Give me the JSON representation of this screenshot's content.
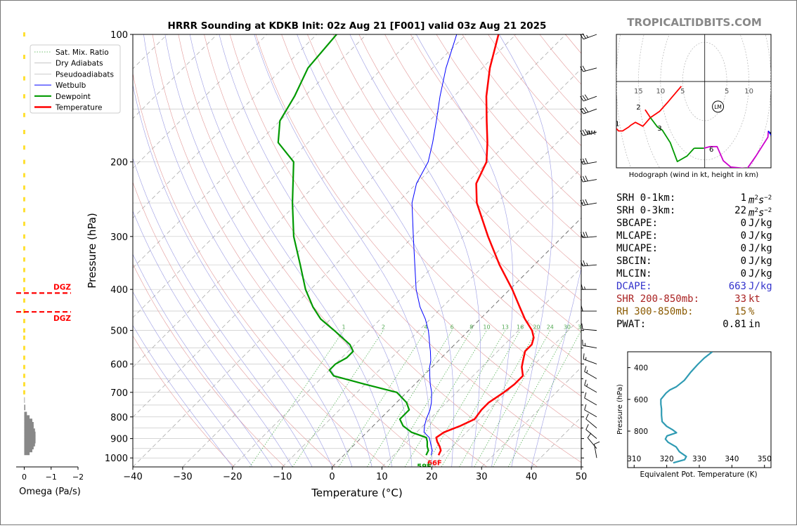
{
  "title": "HRRR Sounding at KDKB Init: 02z Aug 21 [F001] valid 03z Aug 21 2025",
  "brand": "TROPICALTIDBITS.COM",
  "colors": {
    "temperature": "#ff0000",
    "dewpoint": "#009900",
    "wetbulb": "#0000ff",
    "dry_adiabat": "#e39a9a",
    "pseudoadiabat": "#9a9ae3",
    "mixing_ratio": "#44aa44",
    "isotherm": "#aaaaaa",
    "hodo_line": "#2f9bb3",
    "dgz": "#ff0000",
    "omega_pos": "#ffe033",
    "omega_neg": "#888888"
  },
  "legend": {
    "items": [
      {
        "label": "Sat. Mix. Ratio",
        "kind": "mix"
      },
      {
        "label": "Dry Adiabats",
        "kind": "dry"
      },
      {
        "label": "Pseudoadiabats",
        "kind": "pseudo"
      },
      {
        "label": "Wetbulb",
        "kind": "wetbulb"
      },
      {
        "label": "Dewpoint",
        "kind": "dewpoint"
      },
      {
        "label": "Temperature",
        "kind": "temperature"
      }
    ]
  },
  "chart_data": [
    {
      "type": "line",
      "name": "skewt",
      "xlabel": "Temperature (°C)",
      "ylabel": "Pressure (hPa)",
      "xlim": [
        -40,
        50
      ],
      "ylim": [
        1050,
        100
      ],
      "log_y": true,
      "skew": true,
      "x_ticks": [
        -40,
        -30,
        -20,
        -10,
        0,
        10,
        20,
        30,
        40,
        50
      ],
      "x_tick_labels": [
        "−40",
        "−30",
        "−20",
        "−10",
        "0",
        "10",
        "20",
        "30",
        "40",
        "50"
      ],
      "y_ticks": [
        100,
        200,
        300,
        400,
        500,
        600,
        700,
        800,
        900,
        1000
      ],
      "y_tick_labels": [
        "100",
        "200",
        "300",
        "400",
        "500",
        "600",
        "700",
        "800",
        "900",
        "1000"
      ],
      "mixing_ratio_labels": [
        "1",
        "2",
        "4",
        "6",
        "8",
        "10",
        "13",
        "16",
        "20",
        "24",
        "30",
        "36"
      ],
      "mixing_ratio_values": [
        1,
        2,
        4,
        6,
        8,
        10,
        13,
        16,
        20,
        24,
        30,
        36
      ],
      "surface_temp_label": "66F",
      "surface_dew_label": "59F",
      "series": [
        {
          "name": "Temperature",
          "p": [
            985,
            960,
            940,
            915,
            895,
            870,
            840,
            810,
            770,
            740,
            700,
            670,
            640,
            610,
            590,
            560,
            540,
            520,
            500,
            470,
            440,
            400,
            350,
            300,
            250,
            225,
            200,
            180,
            160,
            140,
            120,
            100
          ],
          "t": [
            19,
            18.5,
            17.5,
            16,
            15,
            15.5,
            17.5,
            19,
            18.5,
            18.5,
            19.5,
            20,
            20,
            18,
            17,
            15.5,
            15.5,
            14.5,
            12.7,
            9,
            5.5,
            0.5,
            -7,
            -15,
            -24,
            -28,
            -30.3,
            -34,
            -38.5,
            -43.5,
            -48.5,
            -53.5
          ]
        },
        {
          "name": "Dewpoint",
          "p": [
            985,
            960,
            940,
            915,
            895,
            870,
            840,
            810,
            790,
            770,
            740,
            700,
            670,
            640,
            620,
            600,
            580,
            560,
            540,
            500,
            470,
            440,
            400,
            350,
            300,
            250,
            200,
            180,
            160,
            140,
            120,
            100
          ],
          "t": [
            16.5,
            16,
            15,
            14,
            13,
            9,
            6,
            4,
            4,
            4,
            2,
            -2,
            -10,
            -18,
            -20,
            -20,
            -19,
            -19,
            -21,
            -27,
            -32,
            -36,
            -41,
            -47,
            -54,
            -61,
            -69,
            -76,
            -80,
            -82,
            -85,
            -86
          ]
        },
        {
          "name": "Wetbulb",
          "p": [
            985,
            960,
            940,
            915,
            895,
            870,
            840,
            810,
            770,
            740,
            700,
            670,
            640,
            610,
            590,
            560,
            540,
            520,
            500,
            470,
            440,
            400,
            350,
            300,
            250,
            225,
            200,
            180,
            160,
            140,
            120,
            100
          ],
          "t": [
            17.5,
            16.8,
            15.8,
            14.6,
            13.6,
            11.5,
            10.3,
            9.3,
            8.2,
            7,
            5,
            3.1,
            1.3,
            -0.5,
            -1.5,
            -3.5,
            -5,
            -6.5,
            -8.1,
            -11,
            -14.5,
            -18.8,
            -24,
            -30,
            -37,
            -40,
            -42,
            -45,
            -48.6,
            -52.8,
            -57.3,
            -61.9
          ]
        }
      ]
    },
    {
      "type": "bar",
      "name": "omega",
      "xlabel": "Omega (Pa/s)",
      "x_ticks": [
        0,
        -1,
        -2
      ],
      "x_tick_labels": [
        "0",
        "−1",
        "−2"
      ],
      "xlim": [
        0.3,
        -2.0
      ],
      "dgz_label": "DGZ",
      "dgz_top_p": 408,
      "dgz_bottom_p": 452,
      "levels_p": [
        100,
        113,
        127,
        140,
        155,
        170,
        185,
        200,
        215,
        230,
        245,
        260,
        280,
        300,
        320,
        340,
        360,
        380,
        400,
        425,
        450,
        475,
        500,
        520,
        550,
        580,
        610,
        640,
        670,
        700,
        730,
        760,
        790,
        805,
        820,
        835,
        850,
        865,
        880,
        895,
        910,
        925,
        940,
        955,
        970
      ],
      "values": [
        0.03,
        0.03,
        0.03,
        0.03,
        0.03,
        0.03,
        0.03,
        0.02,
        0.02,
        0.02,
        0.02,
        0.02,
        0.03,
        0.03,
        0.03,
        0.03,
        0.03,
        0.03,
        0.03,
        0.03,
        0.02,
        0.02,
        0.02,
        0.01,
        0.01,
        0.01,
        0.01,
        0.01,
        0.01,
        0.01,
        -0.02,
        -0.04,
        -0.1,
        -0.2,
        -0.3,
        -0.35,
        -0.35,
        -0.4,
        -0.42,
        -0.42,
        -0.42,
        -0.4,
        -0.35,
        -0.3,
        -0.2
      ]
    },
    {
      "type": "line",
      "name": "hodograph",
      "xlabel": "Hodograph (wind in kt, height in km)",
      "xlim": [
        -20,
        15
      ],
      "ylim": [
        -11,
        6
      ],
      "ring_labels": [
        "15",
        "10",
        "5",
        "5",
        "10"
      ],
      "ring_label_values": [
        -15,
        -10,
        -5,
        5,
        10
      ],
      "storm_motion_label": "LM",
      "storm_motion": [
        3,
        -3.2
      ],
      "height_labels": [
        {
          "km": "1",
          "u": -19.8,
          "v": -5.3
        },
        {
          "km": "2",
          "u": -15,
          "v": -3.2
        },
        {
          "km": "3",
          "u": -10.2,
          "v": -5.9
        },
        {
          "km": "6",
          "u": 1.5,
          "v": -8.6
        },
        {
          "km": "9",
          "u": 15.2,
          "v": -6.6
        }
      ],
      "segments": [
        {
          "color": "#ff0000",
          "points": [
            [
              -20,
              -6
            ],
            [
              -19.5,
              -6.3
            ],
            [
              -18.6,
              -6.3
            ],
            [
              -17.2,
              -5.8
            ],
            [
              -16.8,
              -5.6
            ],
            [
              -15.7,
              -5.2
            ],
            [
              -14,
              -5.7
            ],
            [
              -12.3,
              -4.6
            ],
            [
              -10.2,
              -3.8
            ],
            [
              -8.3,
              -2.6
            ],
            [
              -5.3,
              -0.6
            ]
          ]
        },
        {
          "color": "#ff0000",
          "points": [
            [
              -13.5,
              -3.6
            ],
            [
              -12.3,
              -4.6
            ]
          ]
        },
        {
          "color": "#009900",
          "points": [
            [
              -12.3,
              -4.6
            ],
            [
              -10.7,
              -5.8
            ],
            [
              -9.6,
              -6.2
            ],
            [
              -7.8,
              -7.8
            ],
            [
              -6.2,
              -10.2
            ],
            [
              -4,
              -9.5
            ],
            [
              -2.4,
              -8.5
            ]
          ]
        },
        {
          "color": "#009900",
          "points": [
            [
              -2.4,
              -8.5
            ],
            [
              -0.2,
              -8.5
            ]
          ]
        },
        {
          "color": "#cc00cc",
          "points": [
            [
              -0.2,
              -8.5
            ],
            [
              1.2,
              -8.3
            ],
            [
              2.8,
              -8.3
            ],
            [
              4.2,
              -10.1
            ],
            [
              5.9,
              -10.9
            ],
            [
              9.6,
              -11.1
            ],
            [
              11.6,
              -9.5
            ],
            [
              14.3,
              -7.1
            ],
            [
              14.4,
              -6.3
            ]
          ]
        },
        {
          "color": "#0000ff",
          "points": [
            [
              14.4,
              -6.3
            ],
            [
              15.5,
              -7.2
            ],
            [
              15.7,
              -8.2
            ],
            [
              15.4,
              -10.1
            ]
          ]
        }
      ]
    },
    {
      "type": "line",
      "name": "theta_e",
      "xlabel": "Equivalent Pot. Temperature (K)",
      "ylabel": "Pressure (hPa)",
      "xlim": [
        308,
        352
      ],
      "ylim": [
        1030,
        300
      ],
      "x_ticks": [
        310,
        320,
        330,
        340,
        350
      ],
      "x_tick_labels": [
        "310",
        "320",
        "330",
        "340",
        "350"
      ],
      "y_ticks": [
        400,
        600,
        800
      ],
      "y_tick_labels": [
        "400",
        "600",
        "800"
      ],
      "p": [
        300,
        340,
        380,
        430,
        480,
        520,
        540,
        560,
        600,
        630,
        660,
        700,
        740,
        770,
        790,
        810,
        830,
        850,
        870,
        900,
        930,
        960,
        980,
        1000
      ],
      "theta_e": [
        334,
        331.5,
        329.5,
        327.3,
        325.4,
        323,
        321,
        319.8,
        318.2,
        318.2,
        318.4,
        318.4,
        318.6,
        320,
        321.7,
        323,
        320.1,
        319.6,
        320.4,
        322.9,
        323.9,
        326,
        325.5,
        322
      ]
    }
  ],
  "stats": [
    {
      "label": "SRH 0-1km:",
      "value": "1",
      "unit_main": "m",
      "unit_sup1": "2",
      "unit_mid": "s",
      "unit_sup2": "−2",
      "color": "#000000"
    },
    {
      "label": "SRH 0-3km:",
      "value": "22",
      "unit_main": "m",
      "unit_sup1": "2",
      "unit_mid": "s",
      "unit_sup2": "−2",
      "color": "#000000"
    },
    {
      "label": "SBCAPE:",
      "value": "0",
      "unit": "J/kg",
      "color": "#000000"
    },
    {
      "label": "MLCAPE:",
      "value": "0",
      "unit": "J/kg",
      "color": "#000000"
    },
    {
      "label": "MUCAPE:",
      "value": "0",
      "unit": "J/kg",
      "color": "#000000"
    },
    {
      "label": "SBCIN:",
      "value": "0",
      "unit": "J/kg",
      "color": "#000000"
    },
    {
      "label": "MLCIN:",
      "value": "0",
      "unit": "J/kg",
      "color": "#000000"
    },
    {
      "label": "DCAPE:",
      "value": "663",
      "unit": "J/kg",
      "color": "#3333cc"
    },
    {
      "label": "SHR 200-850mb:",
      "value": "33",
      "unit": "kt",
      "color": "#aa2222"
    },
    {
      "label": "RH 300-850mb:",
      "value": "15",
      "unit": "%",
      "color": "#8a5a00"
    },
    {
      "label": "PWAT:",
      "value": "0.81",
      "unit": "in",
      "color": "#000000"
    }
  ],
  "wind_barbs": {
    "label_rm": "RM",
    "p": [
      100,
      120,
      140,
      150,
      170,
      200,
      220,
      250,
      300,
      350,
      400,
      450,
      500,
      550,
      600,
      650,
      700,
      750,
      800,
      850,
      900,
      950,
      1000
    ],
    "speed_kt": [
      25,
      20,
      30,
      30,
      35,
      30,
      30,
      30,
      30,
      25,
      15,
      10,
      10,
      15,
      15,
      15,
      15,
      10,
      10,
      10,
      10,
      10,
      10
    ],
    "dir_deg": [
      250,
      255,
      250,
      250,
      255,
      260,
      260,
      260,
      265,
      265,
      270,
      270,
      275,
      280,
      290,
      300,
      300,
      300,
      300,
      310,
      310,
      320,
      350
    ]
  }
}
